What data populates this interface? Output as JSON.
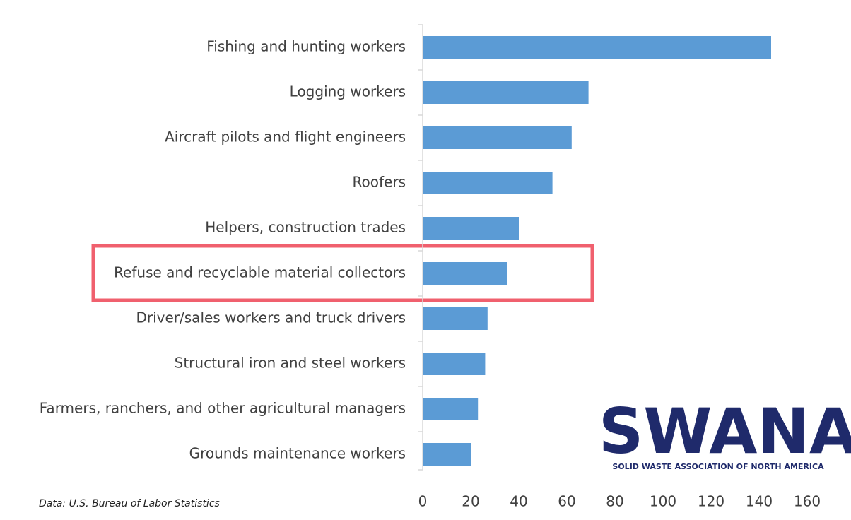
{
  "chart_data": {
    "type": "hbar",
    "categories": [
      "Fishing and hunting workers",
      "Logging workers",
      "Aircraft pilots and flight engineers",
      "Roofers",
      "Helpers, construction trades",
      "Refuse and recyclable material collectors",
      "Driver/sales workers and truck drivers",
      "Structural iron and steel workers",
      "Farmers, ranchers, and other agricultural managers",
      "Grounds maintenance workers"
    ],
    "values": [
      145,
      69,
      62,
      54,
      40,
      35,
      27,
      26,
      23,
      20
    ],
    "color": "#5b9bd5",
    "xlim": [
      0,
      160
    ],
    "xticks": [
      0,
      20,
      40,
      60,
      80,
      100,
      120,
      140,
      160
    ],
    "grid": false,
    "source": "Data: U.S. Bureau of Labor Statistics",
    "logo": {
      "name": "SWANA",
      "tagline": "SOLID WASTE ASSOCIATION OF NORTH AMERICA"
    }
  }
}
